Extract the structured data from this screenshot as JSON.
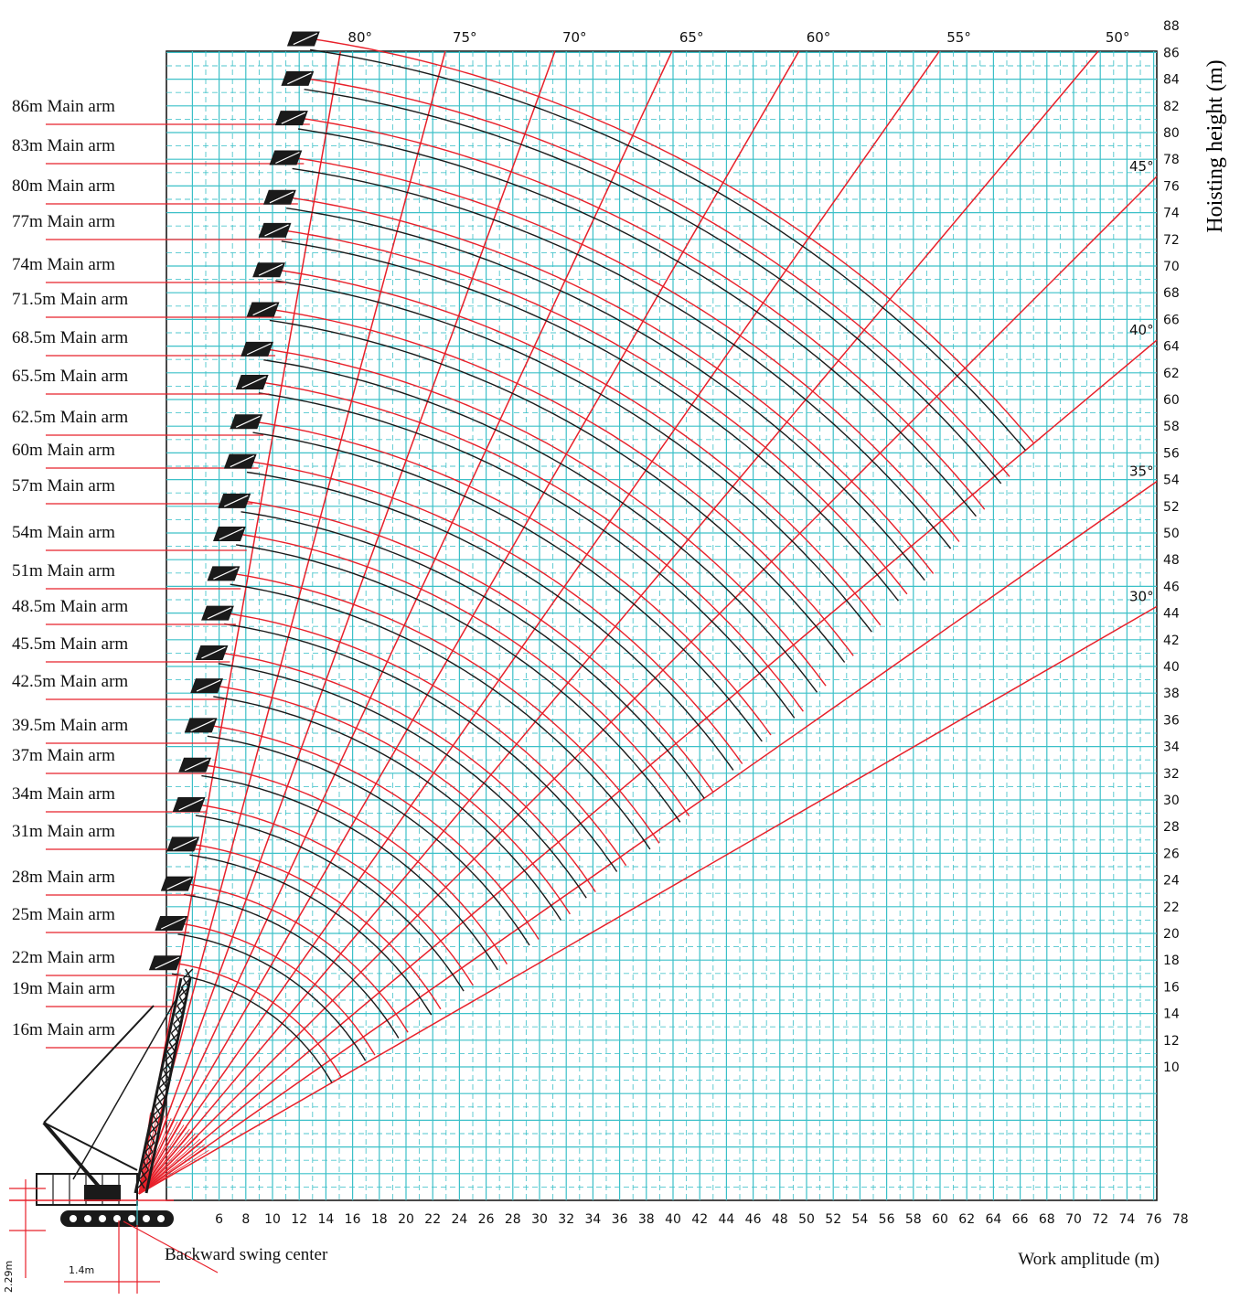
{
  "chart_data": {
    "type": "line",
    "title": "",
    "xlabel": "Work amplitude (m)",
    "ylabel": "Hoisting height (m)",
    "x_ticks": [
      "6",
      "8",
      "10",
      "12",
      "14",
      "16",
      "18",
      "20",
      "22",
      "24",
      "26",
      "28",
      "30",
      "32",
      "34",
      "36",
      "38",
      "40",
      "42",
      "44",
      "46",
      "48",
      "50",
      "52",
      "54",
      "56",
      "58",
      "60",
      "62",
      "64",
      "66",
      "68",
      "70",
      "72",
      "74",
      "76",
      "78"
    ],
    "y_ticks": [
      "10",
      "12",
      "14",
      "16",
      "18",
      "20",
      "22",
      "24",
      "26",
      "28",
      "30",
      "32",
      "34",
      "36",
      "38",
      "40",
      "42",
      "44",
      "46",
      "48",
      "50",
      "52",
      "54",
      "56",
      "58",
      "60",
      "62",
      "64",
      "66",
      "68",
      "70",
      "72",
      "74",
      "76",
      "78",
      "80",
      "82",
      "84",
      "86",
      "88"
    ],
    "xlim": [
      3,
      78
    ],
    "ylim": [
      0,
      88
    ],
    "grid": true,
    "angle_lines": [
      {
        "label": "80°",
        "deg": 80
      },
      {
        "label": "75°",
        "deg": 75
      },
      {
        "label": "70°",
        "deg": 70
      },
      {
        "label": "65°",
        "deg": 65
      },
      {
        "label": "60°",
        "deg": 60
      },
      {
        "label": "55°",
        "deg": 55
      },
      {
        "label": "50°",
        "deg": 50
      },
      {
        "label": "45°",
        "deg": 45
      },
      {
        "label": "40°",
        "deg": 40
      },
      {
        "label": "35°",
        "deg": 35
      },
      {
        "label": "30°",
        "deg": 30
      }
    ],
    "booms": [
      {
        "label": "86m Main arm",
        "length": 86
      },
      {
        "label": "83m Main arm",
        "length": 83
      },
      {
        "label": "80m Main arm",
        "length": 80
      },
      {
        "label": "77m Main arm",
        "length": 77
      },
      {
        "label": "74m Main arm",
        "length": 74
      },
      {
        "label": "71.5m Main arm",
        "length": 71.5
      },
      {
        "label": "68.5m Main arm",
        "length": 68.5
      },
      {
        "label": "65.5m Main arm",
        "length": 65.5
      },
      {
        "label": "62.5m Main arm",
        "length": 62.5
      },
      {
        "label": "60m Main arm",
        "length": 60
      },
      {
        "label": "57m Main arm",
        "length": 57
      },
      {
        "label": "54m Main arm",
        "length": 54
      },
      {
        "label": "51m Main arm",
        "length": 51
      },
      {
        "label": "48.5m Main arm",
        "length": 48.5
      },
      {
        "label": "45.5m Main arm",
        "length": 45.5
      },
      {
        "label": "42.5m Main arm",
        "length": 42.5
      },
      {
        "label": "39.5m Main arm",
        "length": 39.5
      },
      {
        "label": "37m Main arm",
        "length": 37
      },
      {
        "label": "34m Main arm",
        "length": 34
      },
      {
        "label": "31m Main arm",
        "length": 31
      },
      {
        "label": "28m Main arm",
        "length": 28
      },
      {
        "label": "25m Main arm",
        "length": 25
      },
      {
        "label": "22m Main arm",
        "length": 22
      },
      {
        "label": "19m Main arm",
        "length": 19
      },
      {
        "label": "16m Main arm",
        "length": 16
      }
    ],
    "annotations": {
      "swing_center": "Backward swing center",
      "dim_horizontal": "1.4m",
      "dim_vertical": "2.29m"
    },
    "colors": {
      "grid": "#3cc0c8",
      "red": "#e8202a",
      "black": "#1a1a1a"
    }
  }
}
